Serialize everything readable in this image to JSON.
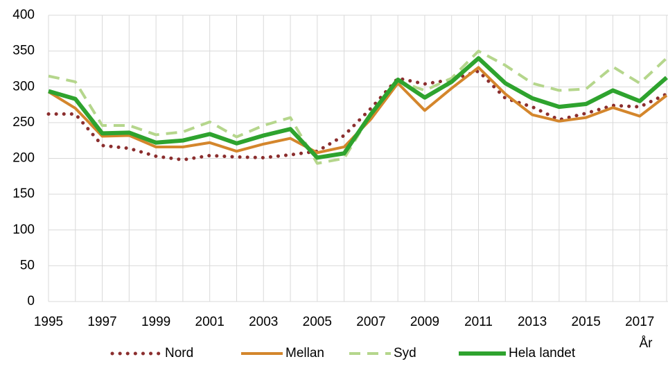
{
  "chart_data": {
    "type": "line",
    "x_label": "År",
    "x": [
      1995,
      1996,
      1997,
      1998,
      1999,
      2000,
      2001,
      2002,
      2003,
      2004,
      2005,
      2006,
      2007,
      2008,
      2009,
      2010,
      2011,
      2012,
      2013,
      2014,
      2015,
      2016,
      2017,
      2018
    ],
    "xlim": [
      1995,
      2018
    ],
    "xticks": [
      1995,
      1997,
      1999,
      2001,
      2003,
      2005,
      2007,
      2009,
      2011,
      2013,
      2015,
      2017
    ],
    "ylim": [
      0,
      400
    ],
    "yticks": [
      0,
      50,
      100,
      150,
      200,
      250,
      300,
      350,
      400
    ],
    "grid": true,
    "legend": "bottom",
    "series": [
      {
        "name": "Nord",
        "color": "#8b2e2e",
        "style": "dotted",
        "width": 5,
        "values": [
          262,
          262,
          218,
          214,
          203,
          198,
          204,
          202,
          201,
          205,
          210,
          232,
          270,
          312,
          304,
          310,
          322,
          284,
          272,
          254,
          263,
          274,
          272,
          290
        ]
      },
      {
        "name": "Mellan",
        "color": "#d4862c",
        "style": "solid",
        "width": 4,
        "values": [
          293,
          270,
          231,
          232,
          216,
          216,
          222,
          210,
          220,
          228,
          208,
          216,
          255,
          305,
          267,
          298,
          327,
          290,
          261,
          252,
          257,
          271,
          259,
          288
        ]
      },
      {
        "name": "Syd",
        "color": "#b5d68c",
        "style": "dashed",
        "width": 4,
        "values": [
          315,
          307,
          246,
          246,
          233,
          237,
          251,
          230,
          246,
          257,
          193,
          200,
          262,
          308,
          295,
          312,
          350,
          330,
          305,
          295,
          297,
          328,
          305,
          340
        ]
      },
      {
        "name": "Hela landet",
        "color": "#2ea32e",
        "style": "solid",
        "width": 6,
        "values": [
          294,
          283,
          235,
          236,
          222,
          225,
          234,
          221,
          232,
          241,
          201,
          207,
          262,
          310,
          285,
          307,
          340,
          305,
          284,
          272,
          276,
          295,
          280,
          313
        ]
      }
    ]
  }
}
